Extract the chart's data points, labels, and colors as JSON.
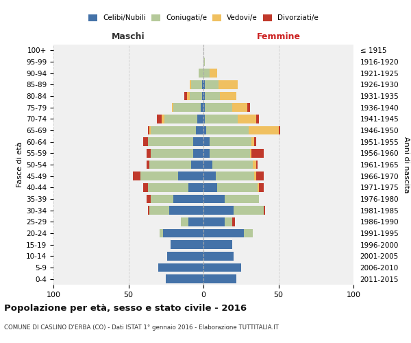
{
  "age_groups": [
    "100+",
    "95-99",
    "90-94",
    "85-89",
    "80-84",
    "75-79",
    "70-74",
    "65-69",
    "60-64",
    "55-59",
    "50-54",
    "45-49",
    "40-44",
    "35-39",
    "30-34",
    "25-29",
    "20-24",
    "15-19",
    "10-14",
    "5-9",
    "0-4"
  ],
  "birth_years": [
    "≤ 1915",
    "1916-1920",
    "1921-1925",
    "1926-1930",
    "1931-1935",
    "1936-1940",
    "1941-1945",
    "1946-1950",
    "1951-1955",
    "1956-1960",
    "1961-1965",
    "1966-1970",
    "1971-1975",
    "1976-1980",
    "1981-1985",
    "1986-1990",
    "1991-1995",
    "1996-2000",
    "2001-2005",
    "2006-2010",
    "2011-2015"
  ],
  "males": {
    "celibi": [
      0,
      0,
      0,
      1,
      1,
      2,
      4,
      5,
      7,
      7,
      8,
      17,
      10,
      20,
      23,
      10,
      27,
      22,
      24,
      30,
      25
    ],
    "coniugati": [
      0,
      0,
      3,
      7,
      8,
      18,
      22,
      30,
      30,
      28,
      28,
      25,
      27,
      15,
      13,
      5,
      2,
      0,
      0,
      0,
      0
    ],
    "vedovi": [
      0,
      0,
      0,
      1,
      2,
      1,
      2,
      1,
      0,
      0,
      0,
      0,
      0,
      0,
      0,
      0,
      0,
      0,
      0,
      0,
      0
    ],
    "divorziati": [
      0,
      0,
      0,
      0,
      2,
      0,
      3,
      1,
      3,
      3,
      2,
      5,
      3,
      3,
      1,
      0,
      0,
      0,
      0,
      0,
      0
    ]
  },
  "females": {
    "nubili": [
      0,
      0,
      0,
      1,
      1,
      1,
      1,
      2,
      4,
      4,
      6,
      8,
      9,
      14,
      20,
      14,
      27,
      19,
      20,
      25,
      22
    ],
    "coniugate": [
      0,
      1,
      4,
      9,
      10,
      18,
      22,
      28,
      28,
      27,
      27,
      26,
      27,
      23,
      20,
      5,
      6,
      0,
      0,
      0,
      0
    ],
    "vedove": [
      0,
      0,
      5,
      13,
      11,
      10,
      12,
      20,
      2,
      1,
      2,
      1,
      1,
      0,
      0,
      0,
      0,
      0,
      0,
      0,
      0
    ],
    "divorziate": [
      0,
      0,
      0,
      0,
      0,
      2,
      2,
      1,
      1,
      8,
      1,
      5,
      3,
      0,
      1,
      2,
      0,
      0,
      0,
      0,
      0
    ]
  },
  "colors": {
    "celibi": "#4472a8",
    "coniugati": "#b5c99a",
    "vedovi": "#f0c060",
    "divorziati": "#c0392b"
  },
  "title": "Popolazione per età, sesso e stato civile - 2016",
  "subtitle": "COMUNE DI CASLINO D'ERBA (CO) - Dati ISTAT 1° gennaio 2016 - Elaborazione TUTTITALIA.IT",
  "xlabel_left": "Maschi",
  "xlabel_right": "Femmine",
  "ylabel_left": "Fasce di età",
  "ylabel_right": "Anni di nascita",
  "xlim": 100,
  "legend_labels": [
    "Celibi/Nubili",
    "Coniugati/e",
    "Vedovi/e",
    "Divorziati/e"
  ],
  "bg_color": "#ffffff",
  "grid_color": "#cccccc"
}
